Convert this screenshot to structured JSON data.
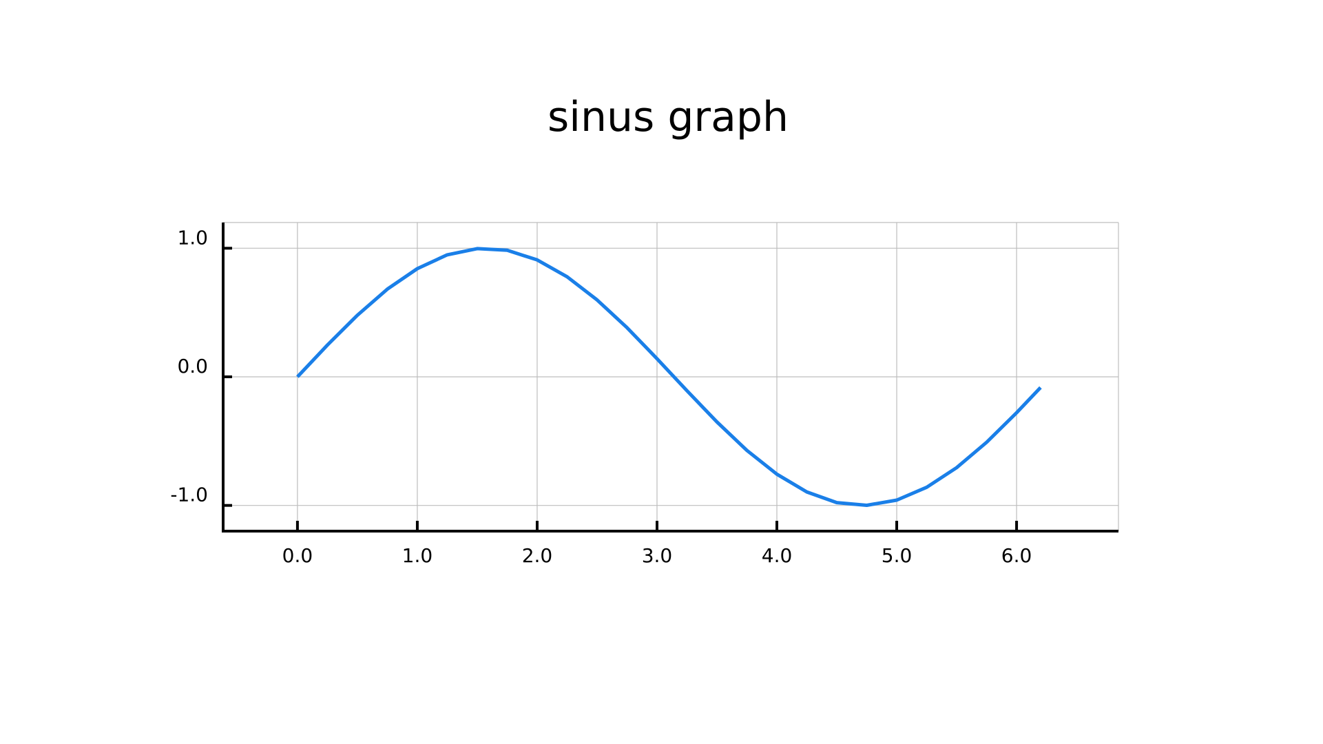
{
  "chart_data": {
    "type": "line",
    "title": "sinus graph",
    "xlabel": "",
    "ylabel": "",
    "xlim": [
      -0.62,
      6.85
    ],
    "ylim": [
      -1.2,
      1.2
    ],
    "grid": true,
    "x_ticks": [
      0.0,
      1.0,
      2.0,
      3.0,
      4.0,
      5.0,
      6.0
    ],
    "x_tick_labels": [
      "0.0",
      "1.0",
      "2.0",
      "3.0",
      "4.0",
      "5.0",
      "6.0"
    ],
    "y_ticks": [
      -1.0,
      0.0,
      1.0
    ],
    "y_tick_labels": [
      "-1.0",
      "0.0",
      "1.0"
    ],
    "line_color": "#1a7fe8",
    "axis_color": "#000000",
    "grid_color": "#bdbdbd",
    "series": [
      {
        "x": [
          0.0,
          0.25,
          0.5,
          0.75,
          1.0,
          1.25,
          1.5,
          1.75,
          2.0,
          2.25,
          2.5,
          2.75,
          3.0,
          3.25,
          3.5,
          3.75,
          4.0,
          4.25,
          4.5,
          4.75,
          5.0,
          5.25,
          5.5,
          5.75,
          6.0,
          6.2
        ],
        "y": [
          0.0,
          0.247,
          0.479,
          0.682,
          0.841,
          0.949,
          0.997,
          0.984,
          0.909,
          0.778,
          0.598,
          0.382,
          0.141,
          -0.108,
          -0.351,
          -0.572,
          -0.757,
          -0.895,
          -0.978,
          -0.999,
          -0.959,
          -0.859,
          -0.706,
          -0.509,
          -0.279,
          -0.083
        ]
      }
    ]
  }
}
